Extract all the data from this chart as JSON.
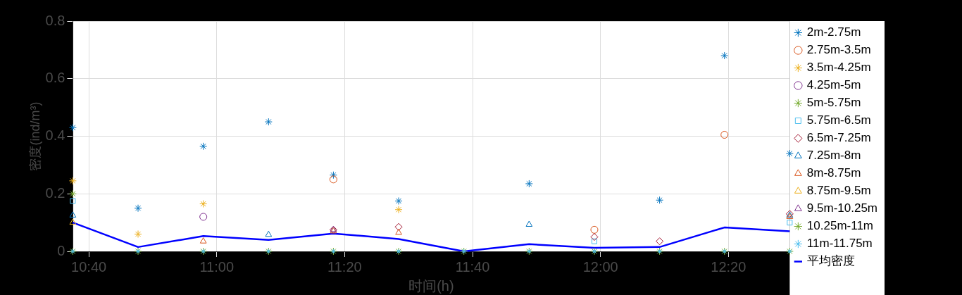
{
  "chart_data": {
    "type": "scatter",
    "xlabel": "时间(h)",
    "ylabel": "密度(ind/m³)",
    "x": [
      10.625,
      10.795,
      10.965,
      11.135,
      11.304,
      11.474,
      11.644,
      11.814,
      11.984,
      12.154,
      12.323,
      12.493
    ],
    "xlim": [
      10.625,
      12.493
    ],
    "xticks": [
      {
        "value": 10.6667,
        "label": "10:40"
      },
      {
        "value": 11,
        "label": "11:00"
      },
      {
        "value": 11.3333,
        "label": "11:20"
      },
      {
        "value": 11.6667,
        "label": "11:40"
      },
      {
        "value": 12,
        "label": "12:00"
      },
      {
        "value": 12.3333,
        "label": "12:20"
      }
    ],
    "ylim": [
      0,
      0.8
    ],
    "yticks": [
      0,
      0.2,
      0.4,
      0.6,
      0.8
    ],
    "grid": true,
    "legend": "right",
    "series": [
      {
        "name": "2m-2.75m",
        "color": "#0072bd",
        "marker": "cross",
        "values": [
          0.43,
          0.15,
          0.365,
          0.45,
          0.265,
          0.175,
          null,
          0.235,
          null,
          0.178,
          0.68,
          0.34
        ]
      },
      {
        "name": "2.75m-3.5m",
        "color": "#d95319",
        "marker": "circle",
        "values": [
          null,
          null,
          null,
          null,
          0.25,
          null,
          null,
          null,
          0.075,
          null,
          0.405,
          null
        ]
      },
      {
        "name": "3.5m-4.25m",
        "color": "#edb120",
        "marker": "cross",
        "values": [
          0.245,
          0.06,
          0.165,
          null,
          null,
          0.145,
          null,
          null,
          null,
          null,
          null,
          null
        ]
      },
      {
        "name": "4.25m-5m",
        "color": "#7e2f8e",
        "marker": "circle",
        "values": [
          null,
          null,
          0.12,
          null,
          null,
          null,
          null,
          null,
          null,
          null,
          null,
          null
        ]
      },
      {
        "name": "5m-5.75m",
        "color": "#77ac30",
        "marker": "cross",
        "values": [
          0.2,
          null,
          null,
          null,
          null,
          null,
          null,
          null,
          null,
          null,
          null,
          null
        ]
      },
      {
        "name": "5.75m-6.5m",
        "color": "#4dbeee",
        "marker": "square",
        "values": [
          0.175,
          null,
          null,
          null,
          null,
          null,
          null,
          null,
          0.035,
          null,
          null,
          0.1
        ]
      },
      {
        "name": "6.5m-7.25m",
        "color": "#a2142f",
        "marker": "diamond",
        "values": [
          null,
          null,
          null,
          null,
          0.075,
          0.085,
          null,
          null,
          0.05,
          0.035,
          null,
          0.13
        ]
      },
      {
        "name": "7.25m-8m",
        "color": "#0072bd",
        "marker": "triangle",
        "values": [
          0.125,
          null,
          null,
          0.058,
          null,
          null,
          null,
          0.093,
          null,
          null,
          null,
          0.125
        ]
      },
      {
        "name": "8m-8.75m",
        "color": "#d95319",
        "marker": "triangle",
        "values": [
          null,
          null,
          0.035,
          null,
          0.07,
          0.065,
          null,
          null,
          null,
          null,
          null,
          0.12
        ]
      },
      {
        "name": "8.75m-9.5m",
        "color": "#edb120",
        "marker": "triangle",
        "values": [
          0.1,
          null,
          null,
          null,
          null,
          null,
          null,
          null,
          null,
          null,
          null,
          null
        ]
      },
      {
        "name": "9.5m-10.25m",
        "color": "#7e2f8e",
        "marker": "triangle",
        "values": [
          null,
          null,
          null,
          null,
          0.075,
          null,
          null,
          null,
          null,
          null,
          null,
          null
        ]
      },
      {
        "name": "10.25m-11m",
        "color": "#77ac30",
        "marker": "cross",
        "values": [
          0,
          0,
          0,
          0,
          0,
          0,
          0,
          0,
          0,
          0,
          0,
          0
        ]
      },
      {
        "name": "11m-11.75m",
        "color": "#4dbeee",
        "marker": "cross",
        "values": [
          0,
          0,
          0,
          0,
          0,
          0,
          0,
          0,
          0,
          0,
          0,
          0
        ]
      },
      {
        "name": "平均密度",
        "type": "line",
        "color": "#0000ff",
        "marker": "none",
        "values": [
          0.1,
          0.015,
          0.053,
          0.04,
          0.062,
          0.043,
          0,
          0.025,
          0.012,
          0.015,
          0.083,
          0.07
        ]
      }
    ]
  }
}
